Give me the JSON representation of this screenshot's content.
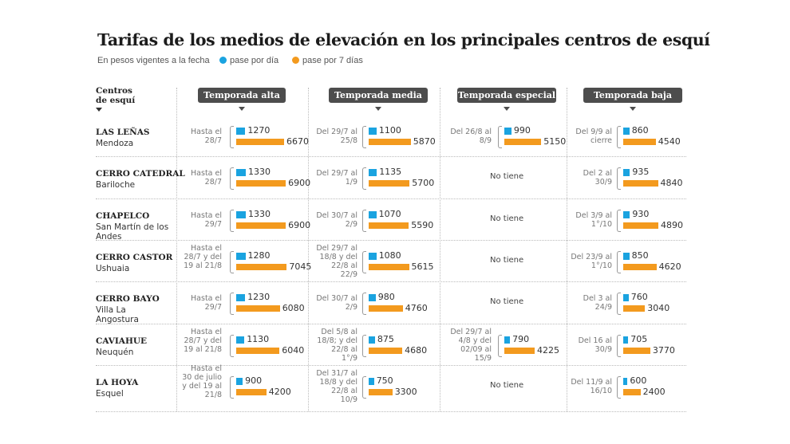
{
  "title": "Tarifas de los medios de elevación en los principales centros de esquí",
  "subtitle": "En pesos vigentes a la fecha",
  "legend": {
    "day": {
      "label": "pase por día",
      "color": "#1aa3e0"
    },
    "week": {
      "label": "pase por 7 días",
      "color": "#f39a1e"
    }
  },
  "centers_header": "Centros de esquí",
  "no_data_label": "No tiene",
  "chart_data": {
    "type": "bar",
    "unit": "pesos",
    "seasons": [
      "Temporada alta",
      "Temporada media",
      "Temporada especial",
      "Temporada baja"
    ],
    "centers": [
      {
        "name": "LAS LEÑAS",
        "location": "Mendoza",
        "seasons": [
          {
            "dates": "Hasta el 28/7",
            "day": 1270,
            "week": 6670
          },
          {
            "dates": "Del 29/7 al 25/8",
            "day": 1100,
            "week": 5870
          },
          {
            "dates": "Del 26/8 al 8/9",
            "day": 990,
            "week": 5150
          },
          {
            "dates": "Del 9/9 al cierre",
            "day": 860,
            "week": 4540
          }
        ]
      },
      {
        "name": "CERRO CATEDRAL",
        "location": "Bariloche",
        "seasons": [
          {
            "dates": "Hasta el 28/7",
            "day": 1330,
            "week": 6900
          },
          {
            "dates": "Del 29/7 al 1/9",
            "day": 1135,
            "week": 5700
          },
          null,
          {
            "dates": "Del 2 al 30/9",
            "day": 935,
            "week": 4840
          }
        ]
      },
      {
        "name": "CHAPELCO",
        "location": "San Martín de los Andes",
        "seasons": [
          {
            "dates": "Hasta el 29/7",
            "day": 1330,
            "week": 6900
          },
          {
            "dates": "Del 30/7 al 2/9",
            "day": 1070,
            "week": 5590
          },
          null,
          {
            "dates": "Del 3/9 al 1°/10",
            "day": 930,
            "week": 4890
          }
        ]
      },
      {
        "name": "CERRO CASTOR",
        "location": "Ushuaia",
        "seasons": [
          {
            "dates": "Hasta el 28/7 y del 19 al 21/8",
            "day": 1280,
            "week": 7045
          },
          {
            "dates": "Del 29/7 al 18/8 y del 22/8 al 22/9",
            "day": 1080,
            "week": 5615
          },
          null,
          {
            "dates": "Del 23/9 al 1°/10",
            "day": 850,
            "week": 4620
          }
        ]
      },
      {
        "name": "CERRO BAYO",
        "location": "Villa La Angostura",
        "seasons": [
          {
            "dates": "Hasta el 29/7",
            "day": 1230,
            "week": 6080
          },
          {
            "dates": "Del 30/7 al 2/9",
            "day": 980,
            "week": 4760
          },
          null,
          {
            "dates": "Del 3 al 24/9",
            "day": 760,
            "week": 3040
          }
        ]
      },
      {
        "name": "CAVIAHUE",
        "location": "Neuquén",
        "seasons": [
          {
            "dates": "Hasta el 28/7 y del 19 al 21/8",
            "day": 1130,
            "week": 6040
          },
          {
            "dates": "Del 5/8 al 18/8; y del 22/8 al 1°/9",
            "day": 875,
            "week": 4680
          },
          {
            "dates": "Del 29/7 al 4/8 y del 02/09 al 15/9",
            "day": 790,
            "week": 4225
          },
          {
            "dates": "Del 16 al 30/9",
            "day": 705,
            "week": 3770
          }
        ]
      },
      {
        "name": "LA HOYA",
        "location": "Esquel",
        "seasons": [
          {
            "dates": "Hasta el 30 de julio y del 19 al 21/8",
            "day": 900,
            "week": 4200
          },
          {
            "dates": "Del 31/7 al 18/8 y del 22/8 al 10/9",
            "day": 750,
            "week": 3300
          },
          null,
          {
            "dates": "Del 11/9 al 16/10",
            "day": 600,
            "week": 2400
          }
        ]
      }
    ]
  }
}
